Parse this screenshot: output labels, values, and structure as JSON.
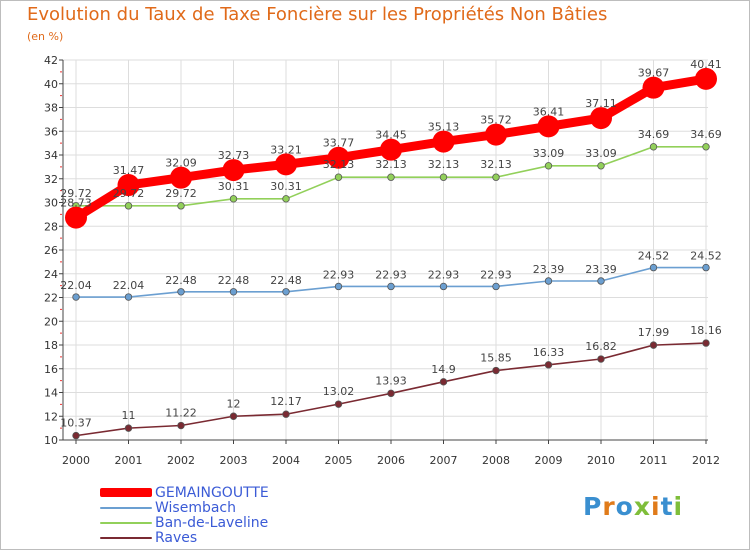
{
  "title": "Evolution du Taux de Taxe Foncière sur les Propriétés Non Bâties",
  "unit": "(en %)",
  "logo": {
    "text": "Proxiti",
    "letters": [
      {
        "ch": "P",
        "color": "#3a8fd0"
      },
      {
        "ch": "r",
        "color": "#e07b1a"
      },
      {
        "ch": "o",
        "color": "#3a8fd0"
      },
      {
        "ch": "x",
        "color": "#7fbe3a"
      },
      {
        "ch": "i",
        "color": "#e07b1a"
      },
      {
        "ch": "t",
        "color": "#3a8fd0"
      },
      {
        "ch": "i",
        "color": "#7fbe3a"
      }
    ]
  },
  "chart_data": {
    "type": "line",
    "title": "Evolution du Taux de Taxe Foncière sur les Propriétés Non Bâties",
    "ylabel": "(en %)",
    "xlabel": "",
    "ylim": [
      10,
      42
    ],
    "yticks": [
      "10",
      "12",
      "14",
      "16",
      "18",
      "20",
      "22",
      "24",
      "26",
      "28",
      "30",
      "32",
      "34",
      "36",
      "38",
      "40",
      "42"
    ],
    "categories": [
      "2000",
      "2001",
      "2002",
      "2003",
      "2004",
      "2005",
      "2006",
      "2007",
      "2008",
      "2009",
      "2010",
      "2011",
      "2012"
    ],
    "grid": true,
    "series": [
      {
        "name": "GEMAINGOUTTE",
        "color": "#ff0000",
        "width": 9,
        "marker": 11,
        "values": [
          28.73,
          31.47,
          32.09,
          32.73,
          33.21,
          33.77,
          34.45,
          35.13,
          35.72,
          36.41,
          37.11,
          39.67,
          40.41
        ],
        "labels": [
          "28.73",
          "31.47",
          "32.09",
          "32.73",
          "33.21",
          "33.77",
          "34.45",
          "35.13",
          "35.72",
          "36.41",
          "37.11",
          "39.67",
          "40.41"
        ]
      },
      {
        "name": "Wisembach",
        "color": "#6b9fd1",
        "width": 1.6,
        "marker": 3.3,
        "values": [
          22.04,
          22.04,
          22.48,
          22.48,
          22.48,
          22.93,
          22.93,
          22.93,
          22.93,
          23.39,
          23.39,
          24.52,
          24.52
        ],
        "labels": [
          "22.04",
          "22.04",
          "22.48",
          "22.48",
          "22.48",
          "22.93",
          "22.93",
          "22.93",
          "22.93",
          "23.39",
          "23.39",
          "24.52",
          "24.52"
        ]
      },
      {
        "name": "Ban-de-Laveline",
        "color": "#92d05a",
        "width": 1.6,
        "marker": 3.3,
        "values": [
          29.72,
          29.72,
          29.72,
          30.31,
          30.31,
          32.13,
          32.13,
          32.13,
          32.13,
          33.09,
          33.09,
          34.69,
          34.69
        ],
        "labels": [
          "29.72",
          "29.72",
          "29.72",
          "30.31",
          "30.31",
          "32.13",
          "32.13",
          "32.13",
          "32.13",
          "33.09",
          "33.09",
          "34.69",
          "34.69"
        ]
      },
      {
        "name": "Raves",
        "color": "#7a2a32",
        "width": 1.6,
        "marker": 3.3,
        "values": [
          10.37,
          11,
          11.22,
          12,
          12.17,
          13.02,
          13.93,
          14.9,
          15.85,
          16.33,
          16.82,
          17.99,
          18.16
        ],
        "labels": [
          "10.37",
          "11",
          "11.22",
          "12",
          "12.17",
          "13.02",
          "13.93",
          "14.9",
          "15.85",
          "16.33",
          "16.82",
          "17.99",
          "18.16"
        ]
      }
    ],
    "legend": [
      "GEMAINGOUTTE",
      "Wisembach",
      "Ban-de-Laveline",
      "Raves"
    ]
  }
}
